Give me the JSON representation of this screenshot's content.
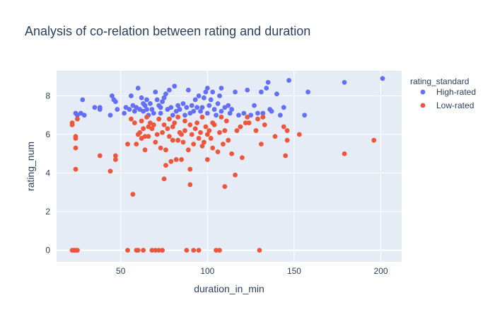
{
  "chart_data": {
    "type": "scatter",
    "title": "Analysis of co-relation between rating and duration",
    "xlabel": "duration_in_min",
    "ylabel": "rating_num",
    "xlim": [
      13,
      212
    ],
    "ylim": [
      -0.6,
      9.3
    ],
    "xticks": [
      50,
      100,
      150,
      200
    ],
    "yticks": [
      0,
      2,
      4,
      6,
      8
    ],
    "grid": true,
    "legend": {
      "title": "rating_standard",
      "position": "top-right"
    },
    "series": [
      {
        "name": "High-rated",
        "color": "#636efa",
        "points": [
          [
            24,
            7.1
          ],
          [
            25,
            7.0
          ],
          [
            27,
            7.1
          ],
          [
            28,
            7.8
          ],
          [
            29,
            7.0
          ],
          [
            35,
            7.4
          ],
          [
            38,
            7.3
          ],
          [
            38,
            7.4
          ],
          [
            44,
            7.0
          ],
          [
            45,
            8.0
          ],
          [
            46,
            7.8
          ],
          [
            47,
            7.7
          ],
          [
            48,
            7.3
          ],
          [
            52,
            7.1
          ],
          [
            53,
            7.4
          ],
          [
            55,
            7.3
          ],
          [
            56,
            8.0
          ],
          [
            57,
            7.5
          ],
          [
            58,
            7.2
          ],
          [
            59,
            7.4
          ],
          [
            60,
            8.4
          ],
          [
            61,
            7.3
          ],
          [
            62,
            7.9
          ],
          [
            63,
            7.6
          ],
          [
            63,
            7.2
          ],
          [
            64,
            7.5
          ],
          [
            65,
            7.8
          ],
          [
            65,
            7.3
          ],
          [
            66,
            7.0
          ],
          [
            67,
            7.6
          ],
          [
            68,
            7.3
          ],
          [
            69,
            7.1
          ],
          [
            70,
            8.2
          ],
          [
            71,
            7.8
          ],
          [
            72,
            7.5
          ],
          [
            73,
            7.1
          ],
          [
            73,
            7.4
          ],
          [
            74,
            7.7
          ],
          [
            75,
            7.9
          ],
          [
            76,
            8.1
          ],
          [
            77,
            7.3
          ],
          [
            78,
            8.3
          ],
          [
            79,
            7.4
          ],
          [
            80,
            7.0
          ],
          [
            81,
            8.5
          ],
          [
            82,
            7.2
          ],
          [
            83,
            7.5
          ],
          [
            84,
            7.3
          ],
          [
            86,
            7.6
          ],
          [
            87,
            7.0
          ],
          [
            88,
            7.4
          ],
          [
            89,
            8.3
          ],
          [
            90,
            7.1
          ],
          [
            91,
            7.5
          ],
          [
            92,
            7.2
          ],
          [
            93,
            7.8
          ],
          [
            94,
            7.4
          ],
          [
            95,
            8.0
          ],
          [
            96,
            7.2
          ],
          [
            97,
            7.4
          ],
          [
            98,
            7.9
          ],
          [
            99,
            8.2
          ],
          [
            100,
            8.4
          ],
          [
            100,
            7.1
          ],
          [
            101,
            7.5
          ],
          [
            102,
            7.8
          ],
          [
            103,
            8.2
          ],
          [
            104,
            7.3
          ],
          [
            105,
            7.0
          ],
          [
            106,
            7.6
          ],
          [
            107,
            8.0
          ],
          [
            108,
            8.4
          ],
          [
            108,
            7.2
          ],
          [
            110,
            7.4
          ],
          [
            112,
            7.5
          ],
          [
            113,
            7.1
          ],
          [
            114,
            7.3
          ],
          [
            116,
            8.2
          ],
          [
            118,
            7.0
          ],
          [
            121,
            7.1
          ],
          [
            123,
            8.3
          ],
          [
            125,
            7.0
          ],
          [
            127,
            7.5
          ],
          [
            129,
            7.1
          ],
          [
            131,
            8.2
          ],
          [
            132,
            7.1
          ],
          [
            134,
            8.4
          ],
          [
            135,
            8.7
          ],
          [
            136,
            7.3
          ],
          [
            137,
            7.2
          ],
          [
            140,
            8.1
          ],
          [
            142,
            7.0
          ],
          [
            144,
            7.4
          ],
          [
            147,
            8.8
          ],
          [
            156,
            7.0
          ],
          [
            158,
            8.2
          ],
          [
            179,
            8.7
          ],
          [
            201,
            8.9
          ]
        ]
      },
      {
        "name": "Low-rated",
        "color": "#ef553b",
        "points": [
          [
            22,
            6.5
          ],
          [
            22,
            6.6
          ],
          [
            22,
            0
          ],
          [
            23,
            0
          ],
          [
            24,
            0
          ],
          [
            25,
            0
          ],
          [
            24,
            5.9
          ],
          [
            24,
            5.8
          ],
          [
            24,
            5.3
          ],
          [
            24,
            4.2
          ],
          [
            25,
            6.8
          ],
          [
            38,
            4.9
          ],
          [
            44,
            4.1
          ],
          [
            47,
            4.7
          ],
          [
            47,
            4.9
          ],
          [
            54,
            5.5
          ],
          [
            54,
            0
          ],
          [
            56,
            6.8
          ],
          [
            57,
            2.9
          ],
          [
            58,
            6.6
          ],
          [
            59,
            5.5
          ],
          [
            59,
            0
          ],
          [
            60,
            0
          ],
          [
            60,
            6.0
          ],
          [
            61,
            6.1
          ],
          [
            62,
            6.7
          ],
          [
            62,
            5.8
          ],
          [
            63,
            0
          ],
          [
            63,
            6.3
          ],
          [
            64,
            5.9
          ],
          [
            64,
            5.2
          ],
          [
            65,
            6.9
          ],
          [
            66,
            6.4
          ],
          [
            66,
            5.9
          ],
          [
            67,
            6.6
          ],
          [
            68,
            6.3
          ],
          [
            68,
            0
          ],
          [
            69,
            6.5
          ],
          [
            70,
            5.6
          ],
          [
            70,
            0
          ],
          [
            71,
            6.0
          ],
          [
            72,
            6.8
          ],
          [
            72,
            0
          ],
          [
            73,
            5.3
          ],
          [
            74,
            6.1
          ],
          [
            74,
            0
          ],
          [
            75,
            3.7
          ],
          [
            75,
            6.5
          ],
          [
            76,
            4.4
          ],
          [
            76,
            5.2
          ],
          [
            77,
            6.3
          ],
          [
            78,
            6.8
          ],
          [
            78,
            5.9
          ],
          [
            79,
            4.6
          ],
          [
            80,
            6.4
          ],
          [
            80,
            5.7
          ],
          [
            81,
            6.6
          ],
          [
            82,
            4.7
          ],
          [
            83,
            6.9
          ],
          [
            83,
            5.7
          ],
          [
            84,
            6.1
          ],
          [
            85,
            6.0
          ],
          [
            85,
            4.7
          ],
          [
            86,
            5.6
          ],
          [
            87,
            6.2
          ],
          [
            87,
            6.7
          ],
          [
            88,
            0
          ],
          [
            89,
            5.2
          ],
          [
            90,
            6.5
          ],
          [
            90,
            4.2
          ],
          [
            90,
            3.4
          ],
          [
            91,
            6.0
          ],
          [
            92,
            5.5
          ],
          [
            92,
            0
          ],
          [
            93,
            6.3
          ],
          [
            94,
            6.6
          ],
          [
            95,
            0
          ],
          [
            95,
            5.8
          ],
          [
            96,
            6.1
          ],
          [
            97,
            5.4
          ],
          [
            97,
            6.9
          ],
          [
            98,
            5.6
          ],
          [
            99,
            6.4
          ],
          [
            100,
            4.7
          ],
          [
            100,
            6.0
          ],
          [
            101,
            6.2
          ],
          [
            102,
            5.8
          ],
          [
            103,
            5.3
          ],
          [
            103,
            6.6
          ],
          [
            104,
            6.5
          ],
          [
            105,
            0
          ],
          [
            106,
            5.1
          ],
          [
            107,
            6.1
          ],
          [
            107,
            0
          ],
          [
            108,
            6.9
          ],
          [
            109,
            5.5
          ],
          [
            110,
            3.3
          ],
          [
            110,
            6.2
          ],
          [
            111,
            6.7
          ],
          [
            112,
            5.7
          ],
          [
            114,
            5.0
          ],
          [
            116,
            3.9
          ],
          [
            117,
            6.2
          ],
          [
            119,
            6.4
          ],
          [
            120,
            4.8
          ],
          [
            122,
            6.6
          ],
          [
            123,
            6.9
          ],
          [
            124,
            6.6
          ],
          [
            128,
            6.2
          ],
          [
            129,
            6.8
          ],
          [
            130,
            0
          ],
          [
            131,
            5.5
          ],
          [
            132,
            6.9
          ],
          [
            133,
            6.5
          ],
          [
            139,
            5.9
          ],
          [
            144,
            6.4
          ],
          [
            145,
            4.9
          ],
          [
            146,
            6.2
          ],
          [
            146,
            5.7
          ],
          [
            153,
            6.0
          ],
          [
            179,
            5.0
          ],
          [
            196,
            5.7
          ]
        ]
      }
    ]
  }
}
